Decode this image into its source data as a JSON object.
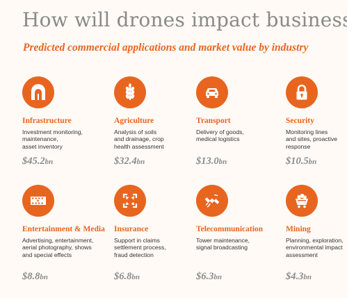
{
  "header": {
    "title": "How will drones impact business?",
    "subtitle": "Predicted commercial applications and market value by industry"
  },
  "industries": [
    {
      "name": "Infrastructure",
      "icon": "tunnel-icon",
      "description": "Investment monitoring,\nmaintenance,\nasset inventory",
      "value": "$45.2",
      "unit": "bn"
    },
    {
      "name": "Agriculture",
      "icon": "wheat-icon",
      "description": "Analysis of soils\nand drainage, crop\nhealth assessment",
      "value": "$32.4",
      "unit": "bn"
    },
    {
      "name": "Transport",
      "icon": "car-icon",
      "description": "Delivery of goods,\nmedical logistics",
      "value": "$13.0",
      "unit": "bn"
    },
    {
      "name": "Security",
      "icon": "padlock-icon",
      "description": "Monitoring lines\nand sites, proactive\nresponse",
      "value": "$10.5",
      "unit": "bn"
    },
    {
      "name": "Entertainment & Media",
      "icon": "film-strip-icon",
      "description": "Advertising, entertainment,\naerial photography, shows\nand special effects",
      "value": "$8.8",
      "unit": "bn"
    },
    {
      "name": "Insurance",
      "icon": "arrows-inward-icon",
      "description": "Support in claims\nsettlement process,\nfraud detection",
      "value": "$6.8",
      "unit": "bn"
    },
    {
      "name": "Telecommunication",
      "icon": "satellite-icon",
      "description": "Tower maintenance,\nsignal broadcasting",
      "value": "$6.3",
      "unit": "bn"
    },
    {
      "name": "Mining",
      "icon": "mine-cart-icon",
      "description": "Planning, exploration,\nenvironmental impact\nassessment",
      "value": "$4.3",
      "unit": "bn"
    }
  ],
  "colors": {
    "accent": "#e8651f",
    "title_gray": "#8a8a8a",
    "value_gray": "#8c8c8c"
  }
}
